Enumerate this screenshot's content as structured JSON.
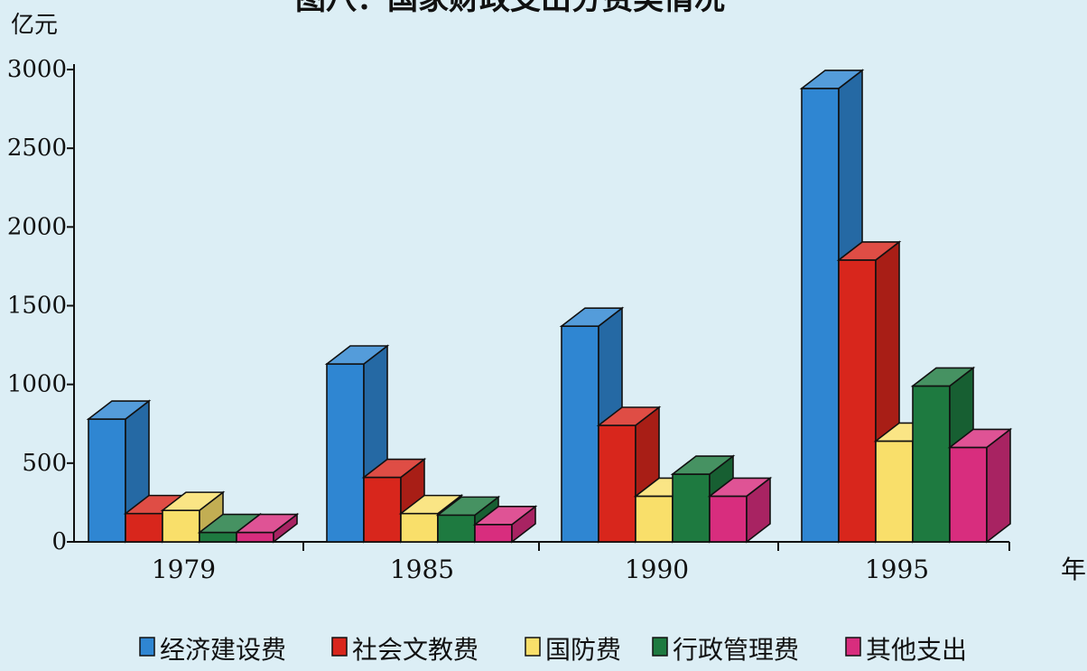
{
  "chart_data": {
    "type": "bar",
    "title": "图八：国家财政支出分费类情况",
    "ylabel": "亿元",
    "xlabel": "年",
    "ylim": [
      0,
      3000
    ],
    "yticks": [
      "0",
      "500",
      "1000",
      "1500",
      "2000",
      "2500",
      "3000"
    ],
    "categories": [
      "1979",
      "1985",
      "1990",
      "1995"
    ],
    "series": [
      {
        "name": "经济建设费",
        "color": "#2f86d2",
        "values": [
          780,
          1130,
          1370,
          2880
        ]
      },
      {
        "name": "社会文教费",
        "color": "#d8261c",
        "values": [
          180,
          410,
          740,
          1790
        ]
      },
      {
        "name": "国防费",
        "color": "#f9df6a",
        "values": [
          200,
          180,
          290,
          640
        ]
      },
      {
        "name": "行政管理费",
        "color": "#1e7a40",
        "values": [
          60,
          170,
          430,
          990
        ]
      },
      {
        "name": "其他支出",
        "color": "#d82d7e",
        "values": [
          60,
          110,
          290,
          600
        ]
      }
    ],
    "legend_position": "bottom",
    "grid": false
  }
}
